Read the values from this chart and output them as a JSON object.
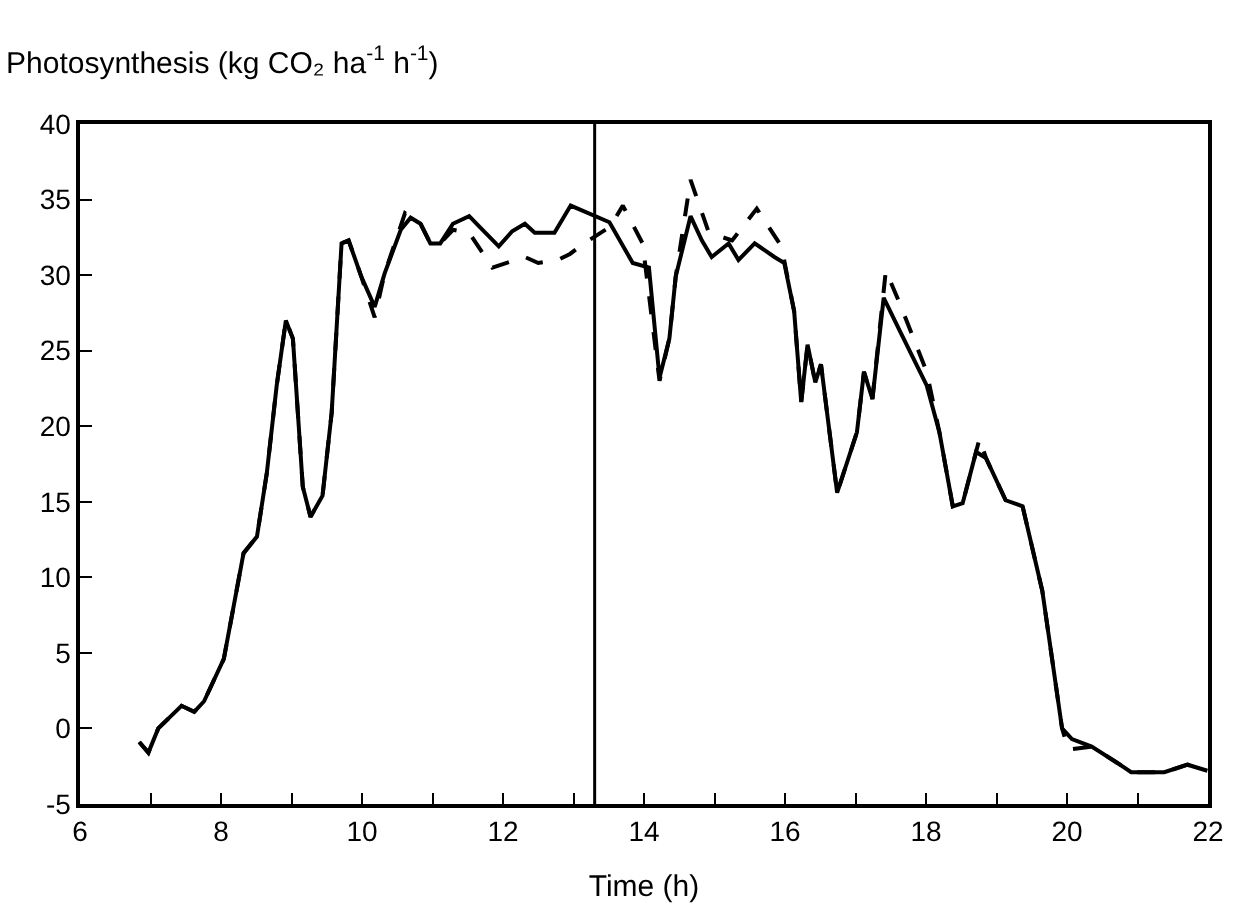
{
  "chart_data": {
    "type": "line",
    "ylabel": "Photosynthesis (kg CO₂ ha$^{-1}$ h$^{-1}$)",
    "xlabel": "Time (h)",
    "xlim": [
      6,
      22
    ],
    "ylim": [
      -5,
      40
    ],
    "xticks": [
      6,
      {
        "value": 7,
        "label": null
      },
      8,
      {
        "value": 9,
        "label": null
      },
      10,
      {
        "value": 11,
        "label": null
      },
      12,
      {
        "value": 13,
        "label": null
      },
      14,
      {
        "value": 15,
        "label": null
      },
      16,
      {
        "value": 17,
        "label": null
      },
      18,
      {
        "value": 19,
        "label": null
      },
      20,
      {
        "value": 21,
        "label": null
      },
      22
    ],
    "yticks": [
      -5,
      0,
      5,
      10,
      15,
      20,
      25,
      30,
      35,
      40
    ],
    "marker": "none",
    "ref_lines": [
      {
        "axis": "x",
        "value": 13.3,
        "color": "#000000"
      }
    ],
    "series": [
      {
        "color": "#000000",
        "line_style": "solid",
        "x": [
          6.84,
          6.97,
          7.11,
          7.44,
          7.62,
          7.76,
          8.04,
          8.32,
          8.51,
          8.65,
          8.79,
          8.92,
          9.02,
          9.16,
          9.27,
          9.44,
          9.57,
          9.71,
          9.81,
          9.99,
          10.18,
          10.32,
          10.55,
          10.69,
          10.83,
          10.97,
          11.11,
          11.29,
          11.52,
          11.71,
          11.94,
          12.13,
          12.31,
          12.45,
          12.73,
          12.96,
          13.51,
          13.84,
          14.07,
          14.22,
          14.36,
          14.45,
          14.66,
          14.82,
          14.96,
          15.2,
          15.34,
          15.57,
          15.85,
          15.99,
          16.13,
          16.23,
          16.32,
          16.43,
          16.51,
          16.74,
          17.02,
          17.12,
          17.24,
          17.4,
          17.63,
          18.01,
          18.19,
          18.38,
          18.52,
          18.71,
          18.85,
          19.13,
          19.37,
          19.65,
          19.93,
          20.07,
          20.35,
          20.72,
          20.91,
          21.38,
          21.71,
          21.99
        ],
        "values": [
          -0.9,
          -1.6,
          0.0,
          1.5,
          1.1,
          1.8,
          4.6,
          11.6,
          12.7,
          16.9,
          22.7,
          27.0,
          25.8,
          16.0,
          14.0,
          15.4,
          20.9,
          32.1,
          32.3,
          29.9,
          27.9,
          30.1,
          33.0,
          33.8,
          33.4,
          32.1,
          32.1,
          33.4,
          33.9,
          33.0,
          31.9,
          32.9,
          33.4,
          32.8,
          32.8,
          34.6,
          33.5,
          30.8,
          30.5,
          23.2,
          25.8,
          29.9,
          33.9,
          32.3,
          31.2,
          32.1,
          31.0,
          32.1,
          31.2,
          30.8,
          27.6,
          21.6,
          25.4,
          22.9,
          24.1,
          15.6,
          19.6,
          23.6,
          21.8,
          28.5,
          26.3,
          22.7,
          19.6,
          14.7,
          14.9,
          18.3,
          17.9,
          15.1,
          14.7,
          9.1,
          0.0,
          -0.7,
          -1.2,
          -2.3,
          -2.9,
          -2.9,
          -2.4,
          -2.8
        ]
      },
      {
        "color": "#000000",
        "line_style": "dashed",
        "x": [
          6.84,
          6.97,
          7.11,
          7.44,
          7.62,
          7.76,
          8.04,
          8.32,
          8.51,
          8.65,
          8.79,
          8.92,
          9.02,
          9.16,
          9.27,
          9.44,
          9.57,
          9.71,
          9.81,
          9.99,
          10.18,
          10.32,
          10.61,
          10.83,
          10.97,
          11.11,
          11.29,
          11.52,
          11.85,
          12.31,
          12.5,
          12.78,
          12.95,
          13.15,
          13.52,
          13.7,
          13.98,
          14.22,
          14.36,
          14.45,
          14.66,
          14.92,
          15.25,
          15.6,
          15.95,
          16.13,
          16.23,
          16.32,
          16.43,
          16.51,
          16.74,
          17.02,
          17.12,
          17.24,
          17.43,
          17.63,
          18.01,
          18.19,
          18.38,
          18.52,
          18.76,
          18.85,
          19.13,
          19.37,
          19.65,
          19.93,
          20.02,
          20.35,
          20.72,
          20.91,
          21.38,
          21.71,
          21.99
        ],
        "values": [
          -0.9,
          -1.6,
          0.0,
          1.5,
          1.1,
          1.8,
          4.6,
          11.6,
          12.7,
          16.9,
          22.7,
          27.0,
          25.8,
          16.0,
          14.0,
          15.4,
          20.9,
          32.1,
          32.3,
          29.9,
          27.2,
          30.1,
          34.1,
          33.4,
          32.1,
          32.1,
          33.0,
          32.8,
          30.5,
          31.2,
          30.8,
          31.0,
          31.4,
          32.1,
          33.2,
          34.6,
          32.1,
          23.0,
          25.8,
          29.9,
          36.3,
          32.8,
          32.3,
          34.4,
          31.9,
          27.6,
          21.6,
          25.4,
          22.9,
          24.1,
          15.6,
          19.6,
          23.6,
          21.8,
          30.3,
          28.1,
          23.6,
          19.6,
          14.7,
          14.9,
          19.2,
          17.9,
          15.1,
          14.7,
          9.1,
          0.0,
          -1.4,
          -1.2,
          -2.3,
          -2.9,
          -2.9,
          -2.4,
          -2.8
        ]
      }
    ]
  }
}
